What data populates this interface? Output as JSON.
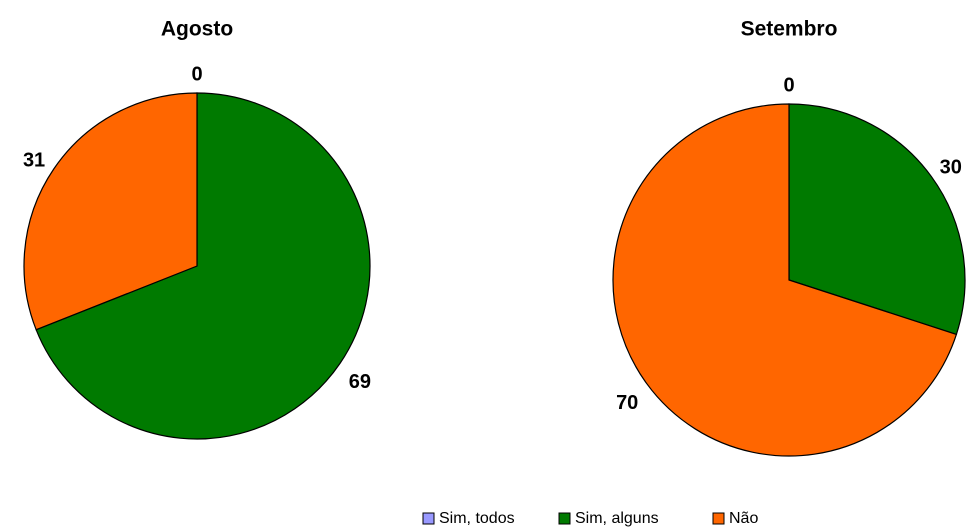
{
  "chart_data": [
    {
      "type": "pie",
      "title": "Agosto",
      "values": [
        0,
        69,
        31
      ]
    },
    {
      "type": "pie",
      "title": "Setembro",
      "values": [
        0,
        30,
        70
      ]
    }
  ],
  "legend": {
    "categories": [
      "Sim, todos",
      "Sim, alguns",
      "Não"
    ],
    "colors": [
      "#9999ff",
      "#007a00",
      "#ff6600"
    ]
  }
}
